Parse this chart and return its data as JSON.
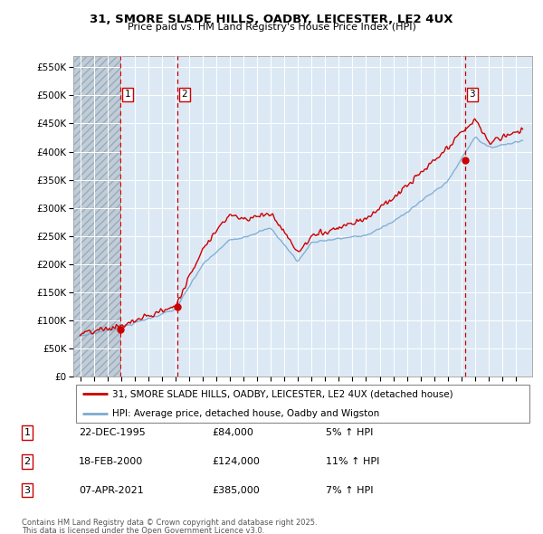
{
  "title_line1": "31, SMORE SLADE HILLS, OADBY, LEICESTER, LE2 4UX",
  "title_line2": "Price paid vs. HM Land Registry's House Price Index (HPI)",
  "legend_line1": "31, SMORE SLADE HILLS, OADBY, LEICESTER, LE2 4UX (detached house)",
  "legend_line2": "HPI: Average price, detached house, Oadby and Wigston",
  "footer_line1": "Contains HM Land Registry data © Crown copyright and database right 2025.",
  "footer_line2": "This data is licensed under the Open Government Licence v3.0.",
  "transactions": [
    {
      "num": 1,
      "date": "22-DEC-1995",
      "price": 84000,
      "pct": "5%",
      "dir": "↑",
      "ref": "HPI",
      "year": 1995.97
    },
    {
      "num": 2,
      "date": "18-FEB-2000",
      "price": 124000,
      "pct": "11%",
      "dir": "↑",
      "ref": "HPI",
      "year": 2000.13
    },
    {
      "num": 3,
      "date": "07-APR-2021",
      "price": 385000,
      "pct": "7%",
      "dir": "↑",
      "ref": "HPI",
      "year": 2021.27
    }
  ],
  "hatch_region_end": 1995.97,
  "ylim": [
    0,
    570000
  ],
  "yticks": [
    0,
    50000,
    100000,
    150000,
    200000,
    250000,
    300000,
    350000,
    400000,
    450000,
    500000,
    550000
  ],
  "ytick_labels": [
    "£0",
    "£50K",
    "£100K",
    "£150K",
    "£200K",
    "£250K",
    "£300K",
    "£350K",
    "£400K",
    "£450K",
    "£500K",
    "£550K"
  ],
  "background_color": "#dce9f5",
  "red_line_color": "#cc0000",
  "blue_line_color": "#7aaad0",
  "dashed_line_color": "#cc0000",
  "grid_color": "#ffffff",
  "xlim_start": 1992.5,
  "xlim_end": 2026.2
}
